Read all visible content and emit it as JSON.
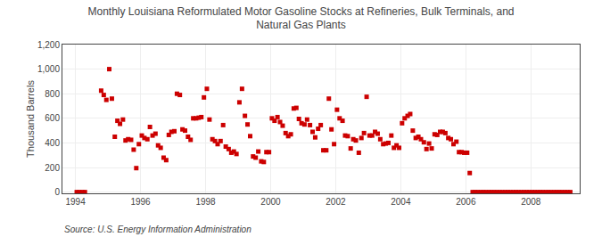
{
  "chart_data": {
    "type": "scatter",
    "title": "Monthly Louisiana Reformulated Motor Gasoline Stocks at Refineries, Bulk Terminals, and\nNatural Gas Plants",
    "y_label": "Thousand Barrels",
    "annotations": [
      "Source: U.S. Energy Information Administration"
    ],
    "color": "#cc0000",
    "marker": "square",
    "grid": true,
    "xlim": [
      1993.6,
      2009.5
    ],
    "ylim": [
      -10,
      1200
    ],
    "xticks": [
      1994,
      1996,
      1998,
      2000,
      2002,
      2004,
      2006,
      2008
    ],
    "yticks": [
      0,
      200,
      400,
      600,
      800,
      {
        "value": 1000,
        "label": "1,000"
      },
      {
        "value": 1200,
        "label": "1,200"
      }
    ],
    "x": [
      1994.04,
      1994.12,
      1994.21,
      1994.29,
      1994.79,
      1994.87,
      1994.95,
      1995.04,
      1995.12,
      1995.21,
      1995.29,
      1995.37,
      1995.46,
      1995.54,
      1995.62,
      1995.71,
      1995.79,
      1995.87,
      1995.95,
      1996.04,
      1996.12,
      1996.21,
      1996.29,
      1996.37,
      1996.46,
      1996.54,
      1996.62,
      1996.71,
      1996.79,
      1996.87,
      1996.95,
      1997.04,
      1997.12,
      1997.21,
      1997.29,
      1997.37,
      1997.46,
      1997.54,
      1997.62,
      1997.71,
      1997.79,
      1997.87,
      1997.95,
      1998.04,
      1998.12,
      1998.21,
      1998.29,
      1998.37,
      1998.46,
      1998.54,
      1998.62,
      1998.71,
      1998.79,
      1998.87,
      1998.95,
      1999.04,
      1999.12,
      1999.21,
      1999.29,
      1999.37,
      1999.46,
      1999.54,
      1999.62,
      1999.71,
      1999.79,
      1999.87,
      1999.95,
      2000.04,
      2000.12,
      2000.21,
      2000.29,
      2000.37,
      2000.46,
      2000.54,
      2000.62,
      2000.71,
      2000.79,
      2000.87,
      2000.95,
      2001.04,
      2001.12,
      2001.21,
      2001.29,
      2001.37,
      2001.46,
      2001.54,
      2001.62,
      2001.71,
      2001.79,
      2001.87,
      2001.95,
      2002.04,
      2002.12,
      2002.21,
      2002.29,
      2002.37,
      2002.46,
      2002.54,
      2002.62,
      2002.71,
      2002.79,
      2002.87,
      2002.95,
      2003.04,
      2003.12,
      2003.21,
      2003.29,
      2003.37,
      2003.46,
      2003.54,
      2003.62,
      2003.71,
      2003.79,
      2003.87,
      2003.95,
      2004.04,
      2004.12,
      2004.21,
      2004.29,
      2004.37,
      2004.46,
      2004.54,
      2004.62,
      2004.71,
      2004.79,
      2004.87,
      2004.95,
      2005.04,
      2005.12,
      2005.21,
      2005.29,
      2005.37,
      2005.46,
      2005.54,
      2005.62,
      2005.71,
      2005.79,
      2005.87,
      2005.95,
      2006.04,
      2006.12,
      2006.21,
      2006.29,
      2006.37,
      2006.46,
      2006.54,
      2006.62,
      2006.71,
      2006.79,
      2006.87,
      2006.95,
      2007.04,
      2007.12,
      2007.21,
      2007.29,
      2007.37,
      2007.46,
      2007.54,
      2007.62,
      2007.71,
      2007.79,
      2007.87,
      2007.95,
      2008.04,
      2008.12,
      2008.21,
      2008.29,
      2008.37,
      2008.46,
      2008.54,
      2008.62,
      2008.71,
      2008.79,
      2008.87,
      2008.95,
      2009.04,
      2009.12,
      2009.21
    ],
    "values": [
      0,
      0,
      0,
      0,
      825,
      790,
      750,
      1000,
      760,
      450,
      580,
      555,
      590,
      420,
      430,
      425,
      345,
      195,
      390,
      460,
      440,
      430,
      530,
      460,
      475,
      380,
      360,
      280,
      260,
      465,
      490,
      495,
      800,
      790,
      510,
      500,
      450,
      425,
      600,
      600,
      605,
      610,
      770,
      840,
      590,
      430,
      415,
      390,
      415,
      545,
      370,
      350,
      320,
      330,
      310,
      730,
      840,
      620,
      550,
      455,
      290,
      280,
      330,
      250,
      245,
      325,
      325,
      600,
      580,
      610,
      570,
      540,
      480,
      455,
      470,
      680,
      685,
      595,
      560,
      550,
      590,
      545,
      490,
      445,
      515,
      545,
      340,
      340,
      760,
      510,
      390,
      670,
      600,
      580,
      460,
      455,
      355,
      430,
      420,
      320,
      440,
      480,
      775,
      460,
      460,
      490,
      475,
      430,
      390,
      395,
      400,
      460,
      360,
      380,
      360,
      560,
      600,
      620,
      635,
      500,
      440,
      450,
      430,
      405,
      350,
      395,
      355,
      470,
      465,
      490,
      490,
      480,
      440,
      430,
      390,
      410,
      325,
      325,
      320,
      320,
      155,
      0,
      0,
      0,
      0,
      0,
      0,
      0,
      0,
      0,
      0,
      0,
      0,
      0,
      0,
      0,
      0,
      0,
      0,
      0,
      0,
      0,
      0,
      0,
      0,
      0,
      0,
      0,
      0,
      0,
      0,
      0,
      0,
      0,
      0,
      0,
      0,
      0
    ]
  }
}
